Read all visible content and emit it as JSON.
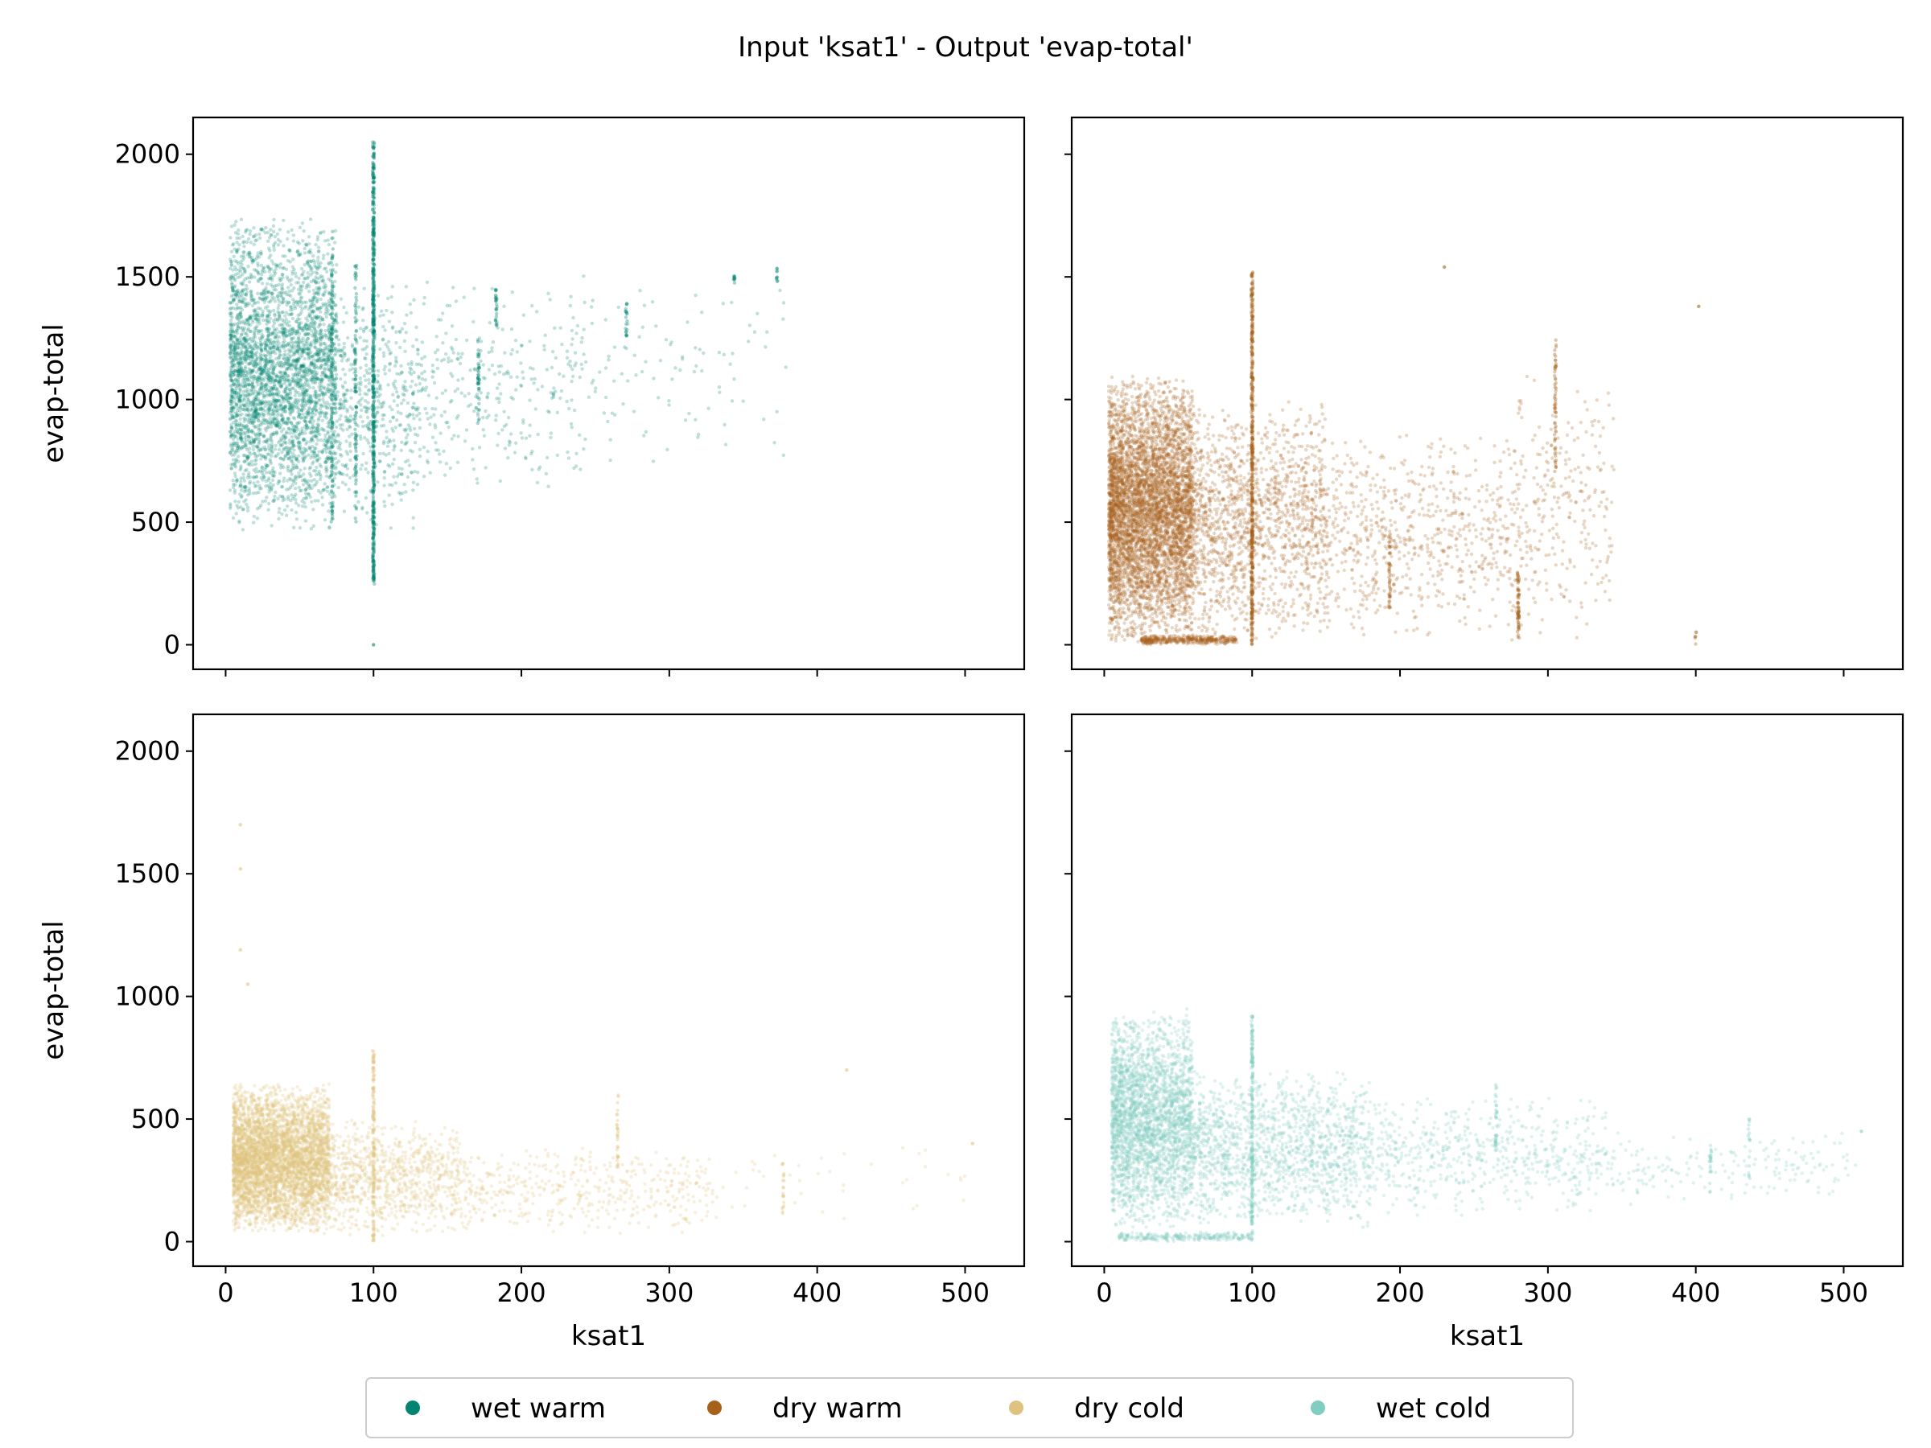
{
  "figure": {
    "title": "Input 'ksat1' - Output 'evap-total'"
  },
  "chart_data": [
    {
      "type": "scatter",
      "panel": "top-left",
      "series_name": "wet warm",
      "color": "#018571",
      "xlabel": "",
      "ylabel": "evap-total",
      "xlim": [
        -22,
        540
      ],
      "ylim": [
        -100,
        2150
      ],
      "xticks": [
        0,
        100,
        200,
        300,
        400,
        500
      ],
      "yticks": [
        0,
        500,
        1000,
        1500,
        2000
      ],
      "show_x_ticklabels": false,
      "show_y_ticklabels": true,
      "clusters": [
        {
          "x": [
            3,
            75
          ],
          "y": [
            450,
            1750
          ],
          "n": 3500
        },
        {
          "x": [
            75,
            130
          ],
          "y": [
            450,
            1500
          ],
          "n": 500
        },
        {
          "x": [
            130,
            240
          ],
          "y": [
            600,
            1500
          ],
          "n": 320
        },
        {
          "x": [
            240,
            380
          ],
          "y": [
            700,
            1550
          ],
          "n": 110
        }
      ],
      "stripes": [
        {
          "x": 100,
          "y": [
            230,
            2050
          ],
          "n": 600
        },
        {
          "x": 72,
          "y": [
            500,
            1700
          ],
          "n": 120
        },
        {
          "x": 88,
          "y": [
            500,
            1550
          ],
          "n": 100
        },
        {
          "x": 171,
          "y": [
            900,
            1250
          ],
          "n": 40
        },
        {
          "x": 183,
          "y": [
            1300,
            1450
          ],
          "n": 25
        },
        {
          "x": 271,
          "y": [
            1250,
            1400
          ],
          "n": 20
        },
        {
          "x": 344,
          "y": [
            1460,
            1520
          ],
          "n": 10
        },
        {
          "x": 373,
          "y": [
            1480,
            1540
          ],
          "n": 10
        }
      ],
      "points": [
        {
          "x": 100,
          "y": 0
        }
      ]
    },
    {
      "type": "scatter",
      "panel": "top-right",
      "series_name": "dry warm",
      "color": "#a6611a",
      "xlabel": "",
      "ylabel": "",
      "xlim": [
        -22,
        540
      ],
      "ylim": [
        -100,
        2150
      ],
      "xticks": [
        0,
        100,
        200,
        300,
        400,
        500
      ],
      "yticks": [
        0,
        500,
        1000,
        1500,
        2000
      ],
      "show_x_ticklabels": false,
      "show_y_ticklabels": false,
      "clusters": [
        {
          "x": [
            3,
            60
          ],
          "y": [
            0,
            1100
          ],
          "n": 5200
        },
        {
          "x": [
            60,
            150
          ],
          "y": [
            0,
            1000
          ],
          "n": 1500
        },
        {
          "x": [
            150,
            280
          ],
          "y": [
            0,
            900
          ],
          "n": 700
        },
        {
          "x": [
            280,
            345
          ],
          "y": [
            0,
            1100
          ],
          "n": 260
        },
        {
          "x": [
            25,
            90
          ],
          "y": [
            0,
            40
          ],
          "n": 400
        }
      ],
      "stripes": [
        {
          "x": 100,
          "y": [
            0,
            1520
          ],
          "n": 500
        },
        {
          "x": 305,
          "y": [
            700,
            1250
          ],
          "n": 60
        },
        {
          "x": 280,
          "y": [
            20,
            300
          ],
          "n": 60
        },
        {
          "x": 193,
          "y": [
            150,
            450
          ],
          "n": 40
        },
        {
          "x": 400,
          "y": [
            0,
            60
          ],
          "n": 6
        }
      ],
      "points": [
        {
          "x": 230,
          "y": 1540
        },
        {
          "x": 402,
          "y": 1380
        }
      ]
    },
    {
      "type": "scatter",
      "panel": "bottom-left",
      "series_name": "dry cold",
      "color": "#dfc27d",
      "xlabel": "ksat1",
      "ylabel": "evap-total",
      "xlim": [
        -22,
        540
      ],
      "ylim": [
        -100,
        2150
      ],
      "xticks": [
        0,
        100,
        200,
        300,
        400,
        500
      ],
      "yticks": [
        0,
        500,
        1000,
        1500,
        2000
      ],
      "show_x_ticklabels": true,
      "show_y_ticklabels": true,
      "clusters": [
        {
          "x": [
            5,
            70
          ],
          "y": [
            30,
            650
          ],
          "n": 4500
        },
        {
          "x": [
            70,
            160
          ],
          "y": [
            20,
            500
          ],
          "n": 900
        },
        {
          "x": [
            160,
            330
          ],
          "y": [
            20,
            400
          ],
          "n": 450
        },
        {
          "x": [
            330,
            500
          ],
          "y": [
            80,
            400
          ],
          "n": 40
        }
      ],
      "stripes": [
        {
          "x": 100,
          "y": [
            0,
            800
          ],
          "n": 150
        },
        {
          "x": 265,
          "y": [
            300,
            600
          ],
          "n": 30
        },
        {
          "x": 377,
          "y": [
            100,
            320
          ],
          "n": 20
        }
      ],
      "points": [
        {
          "x": 10,
          "y": 1700
        },
        {
          "x": 10,
          "y": 1520
        },
        {
          "x": 10,
          "y": 1190
        },
        {
          "x": 15,
          "y": 1050
        },
        {
          "x": 420,
          "y": 700
        },
        {
          "x": 505,
          "y": 400
        }
      ]
    },
    {
      "type": "scatter",
      "panel": "bottom-right",
      "series_name": "wet cold",
      "color": "#80cdc1",
      "xlabel": "ksat1",
      "ylabel": "",
      "xlim": [
        -22,
        540
      ],
      "ylim": [
        -100,
        2150
      ],
      "xticks": [
        0,
        100,
        200,
        300,
        400,
        500
      ],
      "yticks": [
        0,
        500,
        1000,
        1500,
        2000
      ],
      "show_x_ticklabels": true,
      "show_y_ticklabels": true,
      "clusters": [
        {
          "x": [
            5,
            60
          ],
          "y": [
            50,
            950
          ],
          "n": 2800
        },
        {
          "x": [
            60,
            180
          ],
          "y": [
            50,
            700
          ],
          "n": 1500
        },
        {
          "x": [
            180,
            340
          ],
          "y": [
            100,
            600
          ],
          "n": 600
        },
        {
          "x": [
            340,
            510
          ],
          "y": [
            150,
            450
          ],
          "n": 180
        },
        {
          "x": [
            10,
            100
          ],
          "y": [
            0,
            40
          ],
          "n": 250
        }
      ],
      "stripes": [
        {
          "x": 100,
          "y": [
            0,
            920
          ],
          "n": 200
        },
        {
          "x": 265,
          "y": [
            350,
            640
          ],
          "n": 30
        },
        {
          "x": 410,
          "y": [
            200,
            420
          ],
          "n": 20
        },
        {
          "x": 436,
          "y": [
            250,
            500
          ],
          "n": 15
        }
      ],
      "points": [
        {
          "x": 512,
          "y": 450
        }
      ]
    }
  ],
  "legend": {
    "location": "bottom-center",
    "items": [
      {
        "label": "wet warm",
        "color": "#018571"
      },
      {
        "label": "dry warm",
        "color": "#a6611a"
      },
      {
        "label": "dry cold",
        "color": "#dfc27d"
      },
      {
        "label": "wet cold",
        "color": "#80cdc1"
      }
    ]
  }
}
